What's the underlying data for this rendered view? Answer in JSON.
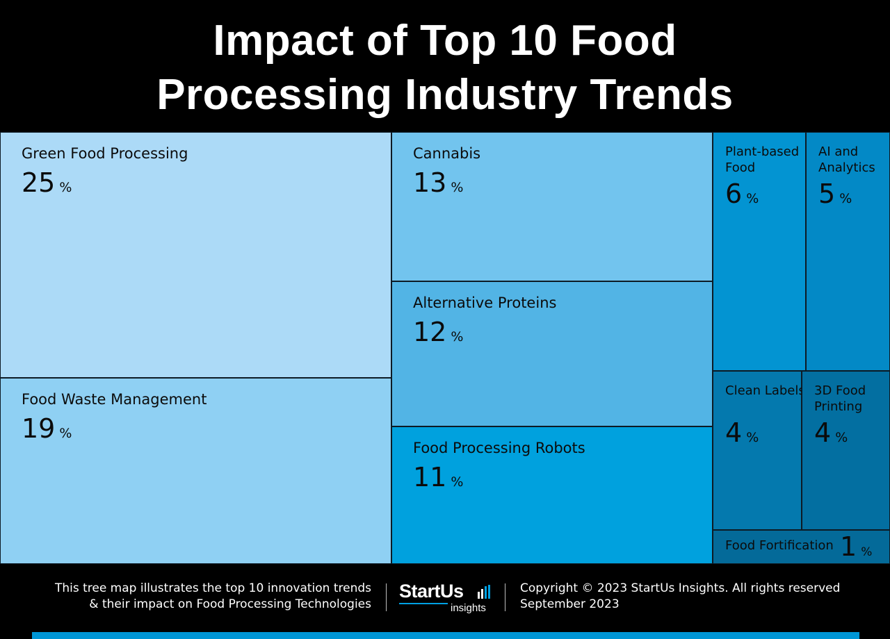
{
  "header": {
    "title_line1": "Impact of Top 10 Food",
    "title_line2": "Processing Industry Trends"
  },
  "chart_data": {
    "type": "treemap",
    "title": "Impact of Top 10 Food Processing Industry Trends",
    "unit": "%",
    "items": [
      {
        "label": "Green Food Processing",
        "value": 25,
        "color": "#acdaf7"
      },
      {
        "label": "Food Waste Management",
        "value": 19,
        "color": "#8fd0f3"
      },
      {
        "label": "Cannabis",
        "value": 13,
        "color": "#72c4ee"
      },
      {
        "label": "Alternative Proteins",
        "value": 12,
        "color": "#52b4e5"
      },
      {
        "label": "Food Processing Robots",
        "value": 11,
        "color": "#00a1de"
      },
      {
        "label": "Plant-based Food",
        "value": 6,
        "color": "#0394d2"
      },
      {
        "label": "AI and Analytics",
        "value": 5,
        "color": "#0389c6"
      },
      {
        "label": "Clean Labels",
        "value": 4,
        "color": "#0479ae"
      },
      {
        "label": "3D Food Printing",
        "value": 4,
        "color": "#036fa1"
      },
      {
        "label": "Food Fortification",
        "value": 1,
        "color": "#046a99"
      }
    ]
  },
  "footer": {
    "description_line1": "This tree map illustrates the top 10 innovation trends",
    "description_line2": "& their impact on Food Processing Technologies",
    "logo_main": "StartUs",
    "logo_sub": "insights",
    "copyright": "Copyright © 2023 StartUs Insights. All rights reserved",
    "date": "September 2023",
    "accent_color": "#0096d6"
  }
}
